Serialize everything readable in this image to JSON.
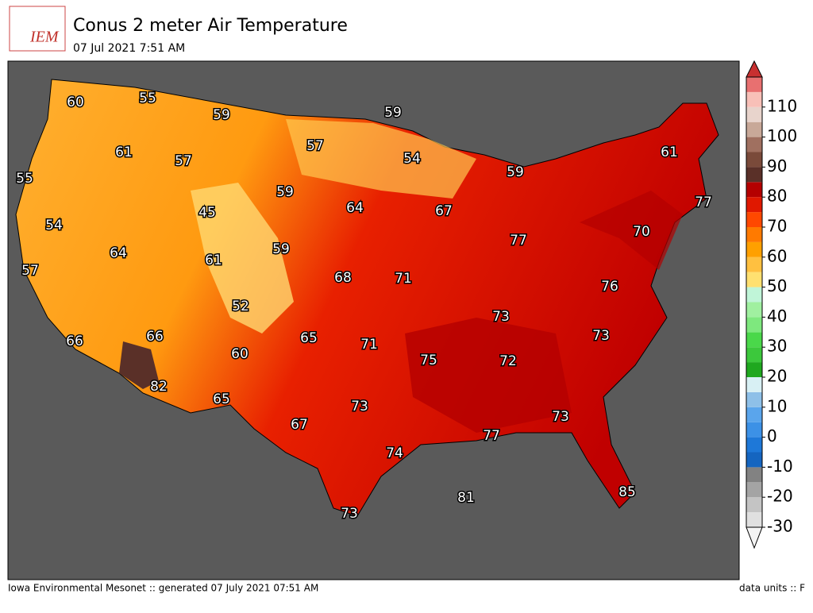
{
  "header": {
    "logo_text": "IEM",
    "title": "Conus 2 meter Air Temperature",
    "subtitle": "07 Jul 2021 7:51 AM"
  },
  "map": {
    "labels": [
      60,
      55,
      59,
      59,
      57,
      61,
      57,
      54,
      61,
      59,
      55,
      59,
      64,
      67,
      77,
      45,
      54,
      70,
      77,
      64,
      61,
      59,
      57,
      68,
      71,
      76,
      52,
      73,
      66,
      65,
      71,
      73,
      66,
      60,
      75,
      72,
      82,
      65,
      73,
      73,
      67,
      77,
      74,
      81,
      85,
      73
    ]
  },
  "colorbar": {
    "ticks": [
      -30,
      -20,
      -10,
      0,
      10,
      20,
      30,
      40,
      50,
      60,
      70,
      80,
      90,
      100,
      110
    ],
    "lim": [
      -30,
      120
    ],
    "step": 5,
    "colors": [
      "#e0e0e0",
      "#c4c4c4",
      "#a4a4a4",
      "#828282",
      "#1565c0",
      "#1e78d8",
      "#3c91e6",
      "#5aa5ec",
      "#8ec0e8",
      "#d8f0f4",
      "#1fa81f",
      "#3cc83c",
      "#4ad84a",
      "#7ee87e",
      "#a0f0a0",
      "#c0f5d8",
      "#ffe070",
      "#ffc040",
      "#ffa000",
      "#ff7a00",
      "#ff4800",
      "#e01800",
      "#b40000",
      "#5a3028",
      "#7a4a3a",
      "#a07060",
      "#c8a898",
      "#e8d4cc",
      "#f8c0b8",
      "#e87070"
    ]
  },
  "footer": {
    "left": "Iowa Environmental Mesonet :: generated 07 July 2021 07:51 AM",
    "right": "data units :: F"
  }
}
